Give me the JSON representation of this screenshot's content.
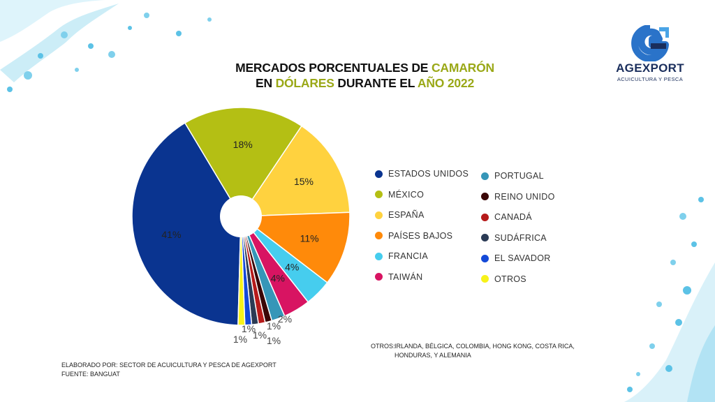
{
  "title": {
    "line1_a": "MERCADOS PORCENTUALES DE ",
    "line1_b": "CAMARÓN",
    "line2_a": "EN ",
    "line2_b": "DÓLARES",
    "line2_c": " DURANTE EL ",
    "line2_d": "AÑO 2022",
    "accent_color": "#9aa817"
  },
  "logo": {
    "name": "AGEXPORT",
    "subtitle": "ACUICULTURA Y PESCA",
    "icon": "agexport-g-logo-icon"
  },
  "chart_data": {
    "type": "pie",
    "donut_hole": true,
    "series": [
      {
        "name": "ESTADOS UNIDOS",
        "value": 41,
        "label": "41%",
        "color": "#0a3490"
      },
      {
        "name": "MÉXICO",
        "value": 18,
        "label": "18%",
        "color": "#b4bf14"
      },
      {
        "name": "ESPAÑA",
        "value": 15,
        "label": "15%",
        "color": "#ffd23f"
      },
      {
        "name": "PAÍSES BAJOS",
        "value": 11,
        "label": "11%",
        "color": "#ff8a0a"
      },
      {
        "name": "FRANCIA",
        "value": 4,
        "label": "4%",
        "color": "#46cdee"
      },
      {
        "name": "TAIWÁN",
        "value": 4,
        "label": "4%",
        "color": "#d81462"
      },
      {
        "name": "PORTUGAL",
        "value": 2,
        "label": "2%",
        "color": "#3696b8"
      },
      {
        "name": "REINO UNIDO",
        "value": 1,
        "label": "1%",
        "color": "#3a0606"
      },
      {
        "name": "CANADÁ",
        "value": 1,
        "label": "1%",
        "color": "#b61a1a"
      },
      {
        "name": "SUDÁFRICA",
        "value": 1,
        "label": "1%",
        "color": "#2b3b55"
      },
      {
        "name": "EL SAVADOR",
        "value": 1,
        "label": "1%",
        "color": "#1449d8"
      },
      {
        "name": "OTROS",
        "value": 1,
        "label": "1%",
        "color": "#f7f219"
      }
    ]
  },
  "note": {
    "label": "OTROS:",
    "text": "IRLANDA, BÉLGICA, COLOMBIA, HONG KONG, COSTA RICA, HONDURAS, Y ALEMANIA"
  },
  "footer": {
    "line1": "ELABORADO POR: SECTOR DE ACUICULTURA Y PESCA DE AGEXPORT",
    "line2": "FUENTE:  BANGUAT"
  }
}
